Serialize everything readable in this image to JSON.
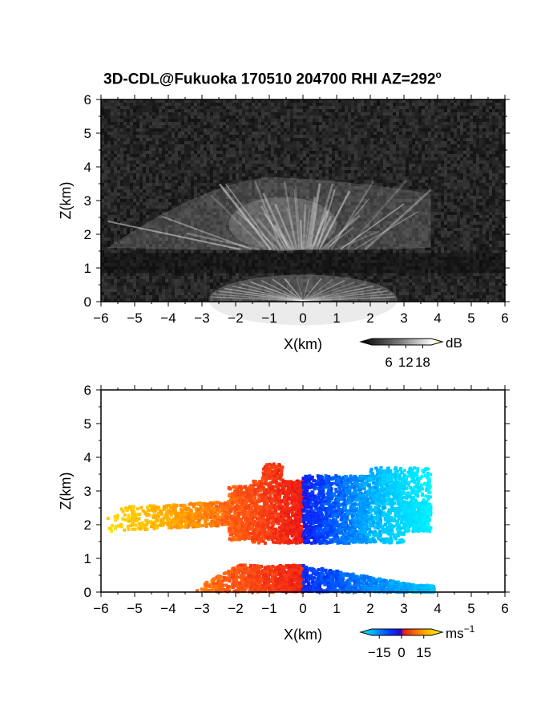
{
  "title": {
    "main": "3D-CDL@Fukuoka 170510 204700 RHI AZ=292",
    "superscript": "o"
  },
  "colors": {
    "axis": "#000000",
    "reflectivity_bg": "#1c1c1c",
    "velocity_bg": "#ffffff"
  },
  "chart_data": [
    {
      "type": "heatmap",
      "panel": "top",
      "xlabel": "X(km)",
      "ylabel": "Z(km)",
      "xlim": [
        -6,
        6
      ],
      "ylim": [
        0,
        6
      ],
      "xticks": [
        "-6",
        "-5",
        "-4",
        "-3",
        "-2",
        "-1",
        "0",
        "1",
        "2",
        "3",
        "4",
        "5",
        "6"
      ],
      "yticks": [
        "0",
        "1",
        "2",
        "3",
        "4",
        "5",
        "6"
      ],
      "colorbar": {
        "unit": "dB",
        "ticks": [
          "6",
          "12",
          "18"
        ],
        "range": [
          0,
          21
        ],
        "colormap": "grayscale"
      },
      "features": [
        {
          "name": "upper layer",
          "z_range_km": [
            1.5,
            3.6
          ],
          "x_range_km": [
            -5.8,
            3.8
          ],
          "intensity_db": 12
        },
        {
          "name": "lower layer",
          "z_range_km": [
            0.0,
            0.8
          ],
          "x_range_km": [
            -2.5,
            3.0
          ],
          "intensity_db": 10
        }
      ]
    },
    {
      "type": "heatmap",
      "panel": "bottom",
      "xlabel": "X(km)",
      "ylabel": "Z(km)",
      "xlim": [
        -6,
        6
      ],
      "ylim": [
        0,
        6
      ],
      "xticks": [
        "-6",
        "-5",
        "-4",
        "-3",
        "-2",
        "-1",
        "0",
        "1",
        "2",
        "3",
        "4",
        "5",
        "6"
      ],
      "yticks": [
        "0",
        "1",
        "2",
        "3",
        "4",
        "5",
        "6"
      ],
      "colorbar": {
        "unit": "ms",
        "unit_superscript": "-1",
        "ticks": [
          "-15",
          "0",
          "15"
        ],
        "range": [
          -20,
          20
        ],
        "colormap": "cyan-blue-red-yellow"
      },
      "features": [
        {
          "name": "upper layer negative x",
          "z_range_km": [
            1.5,
            3.9
          ],
          "x_range_km": [
            -5.8,
            0.0
          ],
          "velocity_ms": "0 to 15"
        },
        {
          "name": "upper layer positive x",
          "z_range_km": [
            1.5,
            3.8
          ],
          "x_range_km": [
            0.0,
            4.0
          ],
          "velocity_ms": "-15 to 0"
        },
        {
          "name": "lower layer negative x",
          "z_range_km": [
            0.0,
            0.8
          ],
          "x_range_km": [
            -3.2,
            0.0
          ],
          "velocity_ms": "0 to 8"
        },
        {
          "name": "lower layer positive x",
          "z_range_km": [
            0.0,
            0.8
          ],
          "x_range_km": [
            0.0,
            4.0
          ],
          "velocity_ms": "-10 to 0"
        }
      ]
    }
  ]
}
